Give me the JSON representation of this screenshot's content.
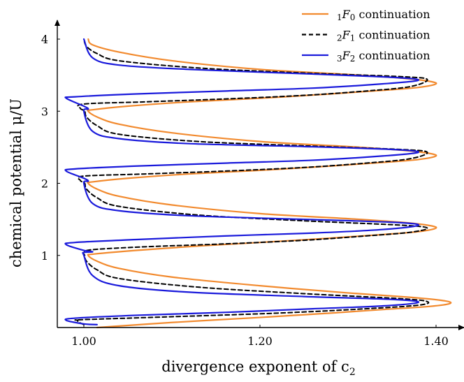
{
  "chart_data": {
    "type": "line",
    "title": "",
    "xlabel": "divergence exponent of c",
    "xlabel_sub": "2",
    "ylabel": "chemical potential μ/U",
    "xlim": [
      0.975,
      1.41
    ],
    "ylim": [
      0.0,
      4.15
    ],
    "xticks": [
      1.0,
      1.2,
      1.4
    ],
    "xtick_labels": [
      "1.00",
      "1.20",
      "1.40"
    ],
    "yticks": [
      1,
      2,
      3,
      4
    ],
    "ytick_labels": [
      "1",
      "2",
      "3",
      "4"
    ],
    "legend_position": "top-right",
    "series": [
      {
        "name": "1F0 continuation",
        "legend_pre": "1",
        "legend_main": "F",
        "legend_sub": "0",
        "legend_rest": " continuation",
        "color": "#f28a2e",
        "dash": "solid",
        "x": [
          1.015,
          1.1,
          1.2,
          1.28,
          1.34,
          1.39,
          1.415,
          1.41,
          1.37,
          1.3,
          1.2,
          1.1,
          1.04,
          1.015,
          1.005,
          1.012,
          1.06,
          1.13,
          1.2,
          1.28,
          1.34,
          1.38,
          1.4,
          1.39,
          1.36,
          1.3,
          1.2,
          1.1,
          1.04,
          1.015,
          1.005,
          1.01,
          1.05,
          1.12,
          1.2,
          1.28,
          1.34,
          1.38,
          1.4,
          1.39,
          1.36,
          1.3,
          1.2,
          1.1,
          1.04,
          1.015,
          1.005,
          1.01,
          1.05,
          1.12,
          1.2,
          1.28,
          1.34,
          1.38,
          1.4,
          1.39,
          1.36,
          1.3,
          1.2,
          1.1,
          1.04,
          1.01,
          1.005
        ],
        "y": [
          0.0,
          0.07,
          0.14,
          0.2,
          0.25,
          0.29,
          0.33,
          0.37,
          0.42,
          0.48,
          0.58,
          0.7,
          0.82,
          0.92,
          1.0,
          1.02,
          1.07,
          1.13,
          1.18,
          1.24,
          1.29,
          1.33,
          1.38,
          1.42,
          1.46,
          1.51,
          1.58,
          1.7,
          1.82,
          1.92,
          2.0,
          2.02,
          2.07,
          2.13,
          2.18,
          2.24,
          2.29,
          2.33,
          2.38,
          2.42,
          2.46,
          2.51,
          2.58,
          2.7,
          2.82,
          2.92,
          3.0,
          3.02,
          3.07,
          3.13,
          3.18,
          3.24,
          3.29,
          3.33,
          3.38,
          3.42,
          3.46,
          3.51,
          3.58,
          3.7,
          3.82,
          3.92,
          4.0
        ]
      },
      {
        "name": "2F1 continuation",
        "legend_pre": "2",
        "legend_main": "F",
        "legend_sub": "1",
        "legend_rest": " continuation",
        "color": "#000000",
        "dash": "dashed",
        "x": [
          1.0,
          0.995,
          0.993,
          1.0,
          1.1,
          1.22,
          1.32,
          1.38,
          1.39,
          1.36,
          1.25,
          1.13,
          1.04,
          1.015,
          1.003,
          1.001,
          1.0,
          1.01,
          1.07,
          1.16,
          1.25,
          1.32,
          1.37,
          1.39,
          1.36,
          1.25,
          1.13,
          1.04,
          1.015,
          1.003,
          1.001,
          0.996,
          1.0,
          1.07,
          1.16,
          1.25,
          1.32,
          1.37,
          1.39,
          1.36,
          1.25,
          1.13,
          1.04,
          1.015,
          1.003,
          1.001,
          0.996,
          1.0,
          1.07,
          1.16,
          1.25,
          1.32,
          1.37,
          1.39,
          1.36,
          1.25,
          1.13,
          1.04,
          1.015,
          1.003,
          1.0
        ],
        "y": [
          0.04,
          0.07,
          0.1,
          0.11,
          0.15,
          0.2,
          0.26,
          0.31,
          0.36,
          0.4,
          0.47,
          0.56,
          0.68,
          0.8,
          0.92,
          1.0,
          1.04,
          1.08,
          1.12,
          1.16,
          1.21,
          1.27,
          1.32,
          1.38,
          1.42,
          1.48,
          1.56,
          1.68,
          1.8,
          1.92,
          2.0,
          2.04,
          2.1,
          2.13,
          2.17,
          2.22,
          2.28,
          2.34,
          2.43,
          2.47,
          2.52,
          2.58,
          2.68,
          2.8,
          2.92,
          3.0,
          3.04,
          3.1,
          3.13,
          3.17,
          3.22,
          3.28,
          3.34,
          3.44,
          3.48,
          3.53,
          3.6,
          3.7,
          3.8,
          3.9,
          4.0
        ]
      },
      {
        "name": "3F2 continuation",
        "legend_pre": "3",
        "legend_main": "F",
        "legend_sub": "2",
        "legend_rest": " continuation",
        "color": "#1a1adb",
        "dash": "solid",
        "x": [
          1.015,
          1.0,
          0.98,
          0.99,
          1.06,
          1.16,
          1.26,
          1.34,
          1.38,
          1.35,
          1.25,
          1.12,
          1.04,
          1.01,
          1.0,
          1.0,
          1.01,
          1.0,
          0.98,
          0.99,
          1.06,
          1.16,
          1.26,
          1.34,
          1.38,
          1.35,
          1.25,
          1.12,
          1.04,
          1.01,
          1.0,
          1.005,
          1.0,
          0.98,
          0.99,
          1.06,
          1.16,
          1.26,
          1.34,
          1.38,
          1.35,
          1.25,
          1.12,
          1.04,
          1.01,
          1.0,
          1.005,
          1.0,
          0.98,
          0.99,
          1.06,
          1.16,
          1.26,
          1.34,
          1.38,
          1.35,
          1.25,
          1.12,
          1.04,
          1.01,
          1.0
        ],
        "y": [
          0.04,
          0.05,
          0.1,
          0.13,
          0.17,
          0.21,
          0.26,
          0.3,
          0.35,
          0.39,
          0.43,
          0.49,
          0.58,
          0.72,
          1.0,
          1.04,
          1.05,
          1.07,
          1.15,
          1.18,
          1.22,
          1.27,
          1.31,
          1.36,
          1.42,
          1.46,
          1.5,
          1.55,
          1.62,
          1.72,
          2.0,
          2.03,
          2.07,
          2.17,
          2.2,
          2.24,
          2.28,
          2.32,
          2.38,
          2.43,
          2.47,
          2.51,
          2.55,
          2.62,
          2.72,
          3.0,
          3.03,
          3.07,
          3.18,
          3.2,
          3.24,
          3.28,
          3.32,
          3.38,
          3.43,
          3.47,
          3.52,
          3.58,
          3.64,
          3.74,
          4.0
        ]
      }
    ]
  }
}
